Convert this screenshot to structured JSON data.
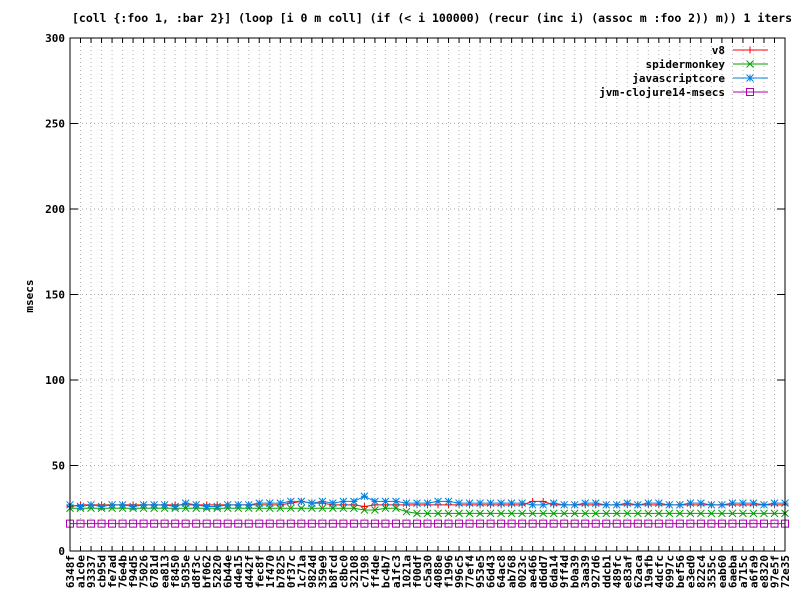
{
  "chart_data": {
    "type": "line",
    "title": "[coll {:foo 1, :bar 2}] (loop [i 0 m coll] (if (< i 100000) (recur (inc i) (assoc m :foo 2)) m)) 1 iters",
    "xlabel": "",
    "ylabel": "msecs",
    "ylim": [
      0,
      300
    ],
    "yticks": [
      "0",
      "50",
      "100",
      "150",
      "200",
      "250",
      "300"
    ],
    "grid": true,
    "legend_position": "top-right",
    "categories": [
      "6348f",
      "a1c0e",
      "93337",
      "cb95d",
      "fe7ad",
      "76e4b",
      "f94d5",
      "75026",
      "6781d",
      "ea813",
      "f8450",
      "5035e",
      "d8f3c",
      "bf062",
      "52820",
      "6b44e",
      "d4e15",
      "d442f",
      "fec8f",
      "1f470",
      "b7825",
      "0f37c",
      "1c71a",
      "9824d",
      "359e9",
      "b8fcd",
      "c8bc0",
      "32108",
      "c7198",
      "ff4de",
      "bc4b7",
      "a1fc3",
      "1021a",
      "f00df",
      "c5a30",
      "4088e",
      "f1996",
      "996c5",
      "77ef4",
      "953e5",
      "66d43",
      "64ac8",
      "ab768",
      "0023c",
      "ae466",
      "d6dd7",
      "6da14",
      "9ff4d",
      "b0a39",
      "3aa39",
      "927d6",
      "ddcb1",
      "489fc",
      "e83af",
      "62aca",
      "19afb",
      "4dcfc",
      "6997c",
      "bef56",
      "e3ed0",
      "822c4",
      "3535c",
      "eab60",
      "6aeba",
      "a715c",
      "a6fa9",
      "e8320",
      "97e5f",
      "72e35"
    ],
    "series": [
      {
        "name": "v8",
        "color": "#ff0000",
        "marker": "plus",
        "values": [
          26,
          27,
          27,
          27,
          27,
          27,
          27,
          27,
          27,
          27,
          27,
          27,
          27,
          27,
          27,
          27,
          27,
          27,
          27,
          27,
          27,
          28,
          29,
          28,
          28,
          27,
          27,
          27,
          26,
          27,
          27,
          27,
          27,
          27,
          27,
          27,
          27,
          27,
          27,
          27,
          27,
          27,
          27,
          27,
          29,
          29,
          27,
          27,
          27,
          27,
          27,
          27,
          27,
          27,
          27,
          27,
          27,
          27,
          27,
          27,
          27,
          27,
          27,
          27,
          27,
          27,
          27,
          27,
          27
        ]
      },
      {
        "name": "spidermonkey",
        "color": "#00a000",
        "marker": "x",
        "values": [
          25,
          25,
          25,
          25,
          25,
          25,
          25,
          25,
          25,
          25,
          25,
          25,
          25,
          25,
          25,
          25,
          25,
          25,
          25,
          25,
          25,
          25,
          25,
          25,
          25,
          25,
          25,
          25,
          24,
          24,
          25,
          25,
          23,
          22,
          22,
          22,
          22,
          22,
          22,
          22,
          22,
          22,
          22,
          22,
          22,
          22,
          22,
          22,
          22,
          22,
          22,
          22,
          22,
          22,
          22,
          22,
          22,
          22,
          22,
          22,
          22,
          22,
          22,
          22,
          22,
          22,
          22,
          22,
          22
        ]
      },
      {
        "name": "javascriptcore",
        "color": "#0080e0",
        "marker": "star",
        "values": [
          27,
          26,
          27,
          26,
          27,
          27,
          26,
          27,
          27,
          27,
          26,
          28,
          27,
          26,
          26,
          27,
          27,
          27,
          28,
          28,
          28,
          29,
          29,
          28,
          29,
          28,
          29,
          29,
          32,
          29,
          29,
          29,
          28,
          28,
          28,
          29,
          29,
          28,
          28,
          28,
          28,
          28,
          28,
          28,
          27,
          27,
          28,
          27,
          27,
          28,
          28,
          27,
          27,
          28,
          27,
          28,
          28,
          27,
          27,
          28,
          28,
          27,
          27,
          28,
          28,
          28,
          27,
          28,
          28
        ]
      },
      {
        "name": "jvm-clojure14-msecs",
        "color": "#b000b0",
        "marker": "square",
        "values": [
          16,
          16,
          16,
          16,
          16,
          16,
          16,
          16,
          16,
          16,
          16,
          16,
          16,
          16,
          16,
          16,
          16,
          16,
          16,
          16,
          16,
          16,
          16,
          16,
          16,
          16,
          16,
          16,
          16,
          16,
          16,
          16,
          16,
          16,
          16,
          16,
          16,
          16,
          16,
          16,
          16,
          16,
          16,
          16,
          16,
          16,
          16,
          16,
          16,
          16,
          16,
          16,
          16,
          16,
          16,
          16,
          16,
          16,
          16,
          16,
          16,
          16,
          16,
          16,
          16,
          16,
          16,
          16,
          16
        ]
      }
    ]
  }
}
